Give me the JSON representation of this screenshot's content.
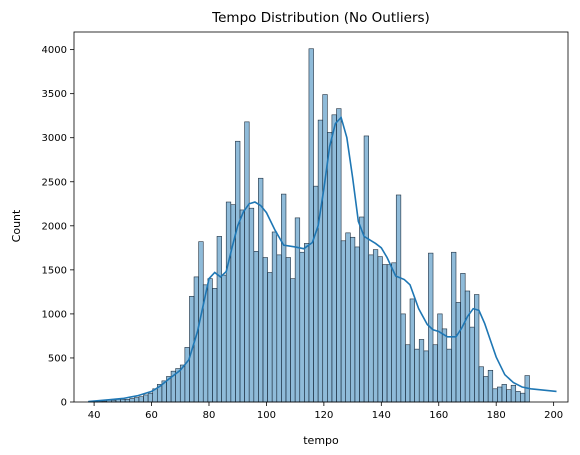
{
  "chart_data": {
    "type": "bar",
    "subtype": "histogram-with-kde",
    "title": "Tempo Distribution (No Outliers)",
    "xlabel": "tempo",
    "ylabel": "Count",
    "xlim": [
      33,
      205
    ],
    "ylim": [
      0,
      4200
    ],
    "x_ticks": [
      40,
      60,
      80,
      100,
      120,
      140,
      160,
      180,
      200
    ],
    "y_ticks": [
      0,
      500,
      1000,
      1500,
      2000,
      2500,
      3000,
      3500,
      4000
    ],
    "grid": false,
    "legend": "none",
    "bar_fill": "#1f77b4",
    "bar_fill_opacity": 0.5,
    "bar_edge": "#1f2f3f",
    "kde_color": "#1f77b4",
    "bin_edges_start": 38,
    "bin_width": 1.6,
    "counts": [
      5,
      5,
      10,
      10,
      20,
      20,
      30,
      30,
      30,
      40,
      50,
      60,
      80,
      100,
      150,
      200,
      240,
      290,
      350,
      380,
      420,
      620,
      1200,
      1420,
      1820,
      1330,
      1400,
      1290,
      1880,
      1440,
      2270,
      2240,
      2960,
      2180,
      3180,
      2200,
      1710,
      2540,
      1640,
      1470,
      1930,
      1670,
      2360,
      1640,
      1400,
      2090,
      1700,
      1800,
      4010,
      2450,
      3200,
      3490,
      3060,
      3260,
      3330,
      1830,
      1920,
      1870,
      1760,
      2100,
      3020,
      1670,
      1730,
      1650,
      1560,
      1560,
      1580,
      2350,
      1000,
      650,
      1170,
      600,
      710,
      580,
      1690,
      650,
      1000,
      830,
      600,
      1700,
      1130,
      1460,
      1260,
      850,
      1220,
      400,
      290,
      360,
      150,
      170,
      200,
      140,
      190,
      120,
      100,
      300
    ],
    "kde": {
      "x": [
        38,
        45,
        50,
        55,
        60,
        63,
        66,
        70,
        73,
        76,
        78,
        80,
        82,
        84,
        86,
        88,
        90,
        92,
        94,
        96,
        98,
        100,
        103,
        106,
        110,
        113,
        116,
        118,
        120,
        122,
        124,
        126,
        128,
        130,
        132,
        134,
        136,
        138,
        140,
        142,
        145,
        148,
        150,
        153,
        156,
        158,
        160,
        163,
        166,
        168,
        170,
        172,
        174,
        176,
        178,
        180,
        183,
        186,
        189,
        192,
        195,
        198,
        201
      ],
      "y": [
        5,
        25,
        40,
        70,
        120,
        180,
        260,
        360,
        480,
        800,
        1100,
        1400,
        1470,
        1420,
        1480,
        1750,
        2000,
        2160,
        2250,
        2270,
        2230,
        2150,
        1950,
        1780,
        1760,
        1740,
        1810,
        2000,
        2420,
        2900,
        3160,
        3230,
        3000,
        2550,
        2050,
        1880,
        1840,
        1800,
        1750,
        1640,
        1430,
        1390,
        1330,
        1060,
        880,
        820,
        800,
        740,
        740,
        840,
        970,
        1060,
        1040,
        890,
        700,
        510,
        310,
        220,
        170,
        150,
        140,
        130,
        120
      ]
    }
  }
}
